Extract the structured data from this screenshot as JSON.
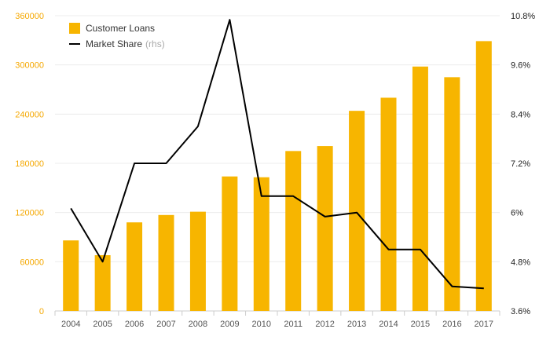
{
  "chart_data": {
    "type": "bar",
    "categories": [
      "2004",
      "2005",
      "2006",
      "2007",
      "2008",
      "2009",
      "2010",
      "2011",
      "2012",
      "2013",
      "2014",
      "2015",
      "2016",
      "2017"
    ],
    "series": [
      {
        "name": "Customer Loans",
        "type": "bar",
        "axis": "left",
        "color": "#f7b500",
        "values": [
          86000,
          68000,
          108000,
          117000,
          121000,
          164000,
          163000,
          195000,
          201000,
          244000,
          260000,
          298000,
          285000,
          329000
        ]
      },
      {
        "name": "Market Share",
        "name_suffix": "(rhs)",
        "type": "line",
        "axis": "right",
        "color": "#000000",
        "values": [
          6.1,
          4.8,
          7.2,
          7.2,
          8.1,
          10.7,
          6.4,
          6.4,
          5.9,
          6.0,
          5.1,
          5.1,
          4.2,
          4.15
        ]
      }
    ],
    "y_left": {
      "min": 0,
      "max": 360000,
      "ticks": [
        "0",
        "60000",
        "120000",
        "180000",
        "240000",
        "300000",
        "360000"
      ],
      "color": "#f5a800"
    },
    "y_right": {
      "min": 3.6,
      "max": 10.8,
      "ticks": [
        "3.6%",
        "4.8%",
        "6%",
        "7.2%",
        "8.4%",
        "9.6%",
        "10.8%"
      ],
      "color": "#222222"
    },
    "grid": "horizontal",
    "legend_position": "top-left"
  }
}
